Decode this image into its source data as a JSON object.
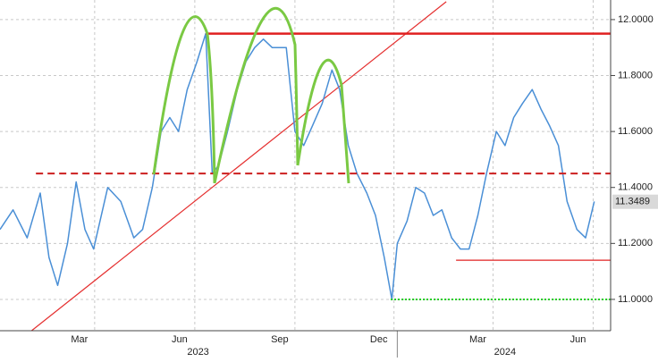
{
  "chart_data": {
    "type": "line",
    "series": [
      {
        "name": "Price",
        "color": "#4a8fd6",
        "x": [
          0,
          12,
          25,
          37,
          45,
          53,
          62,
          70,
          78,
          86,
          99,
          111,
          123,
          131,
          140,
          148,
          156,
          164,
          172,
          181,
          189,
          195,
          201,
          209,
          218,
          226,
          234,
          242,
          250,
          263,
          271,
          279,
          287,
          296,
          305,
          312,
          320,
          328,
          337,
          345,
          353,
          360,
          365,
          374,
          382,
          390,
          398,
          406,
          415,
          423,
          431,
          439,
          447,
          456,
          464,
          472,
          480,
          489,
          497,
          505,
          513,
          521,
          530,
          538,
          546
        ],
        "values": [
          11.25,
          11.32,
          11.22,
          11.38,
          11.15,
          11.05,
          11.2,
          11.42,
          11.25,
          11.18,
          11.4,
          11.35,
          11.22,
          11.25,
          11.4,
          11.6,
          11.65,
          11.6,
          11.75,
          11.85,
          11.95,
          11.45,
          11.48,
          11.6,
          11.75,
          11.85,
          11.9,
          11.93,
          11.9,
          11.9,
          11.6,
          11.55,
          11.62,
          11.7,
          11.82,
          11.75,
          11.55,
          11.45,
          11.38,
          11.3,
          11.15,
          11.0,
          11.2,
          11.28,
          11.4,
          11.38,
          11.3,
          11.32,
          11.22,
          11.18,
          11.18,
          11.3,
          11.45,
          11.6,
          11.55,
          11.65,
          11.7,
          11.75,
          11.68,
          11.62,
          11.55,
          11.35,
          11.25,
          11.22,
          11.35
        ]
      }
    ],
    "xlim": [
      0,
      561
    ],
    "xticks": [
      {
        "value": 73,
        "label": "Mar"
      },
      {
        "value": 165,
        "label": "Jun"
      },
      {
        "value": 257,
        "label": "Sep"
      },
      {
        "value": 348,
        "label": "Dec"
      },
      {
        "value": 439,
        "label": "Mar"
      },
      {
        "value": 531,
        "label": "Jun"
      }
    ],
    "year_labels": [
      {
        "value": 182,
        "label": "2023"
      },
      {
        "value": 464,
        "label": "2024"
      }
    ],
    "year_divider": 365,
    "ylim": [
      10.888,
      12.07
    ],
    "yticks": [
      {
        "value": 11.0,
        "label": "11.0000"
      },
      {
        "value": 11.2,
        "label": "11.2000"
      },
      {
        "value": 11.4,
        "label": "11.4000"
      },
      {
        "value": 11.6,
        "label": "11.6000"
      },
      {
        "value": 11.8,
        "label": "11.8000"
      },
      {
        "value": 12.0,
        "label": "12.0000"
      }
    ],
    "last_value": {
      "value": 11.3489,
      "label": "11.3489"
    },
    "levels": [
      {
        "value": 11.95,
        "from": 189,
        "color": "#e02020",
        "style": "solid"
      },
      {
        "value": 11.45,
        "from": 33,
        "color": "#cc1f1f",
        "style": "dashed"
      },
      {
        "value": 11.14,
        "from": 419,
        "color": "#e02020",
        "style": "thin"
      },
      {
        "value": 11.0,
        "from": 359,
        "color": "#22cc22",
        "style": "dotted"
      }
    ],
    "trendline": {
      "x": [
        29,
        410
      ],
      "y": [
        10.888,
        12.064
      ],
      "color": "#e53030"
    },
    "grid": true
  }
}
